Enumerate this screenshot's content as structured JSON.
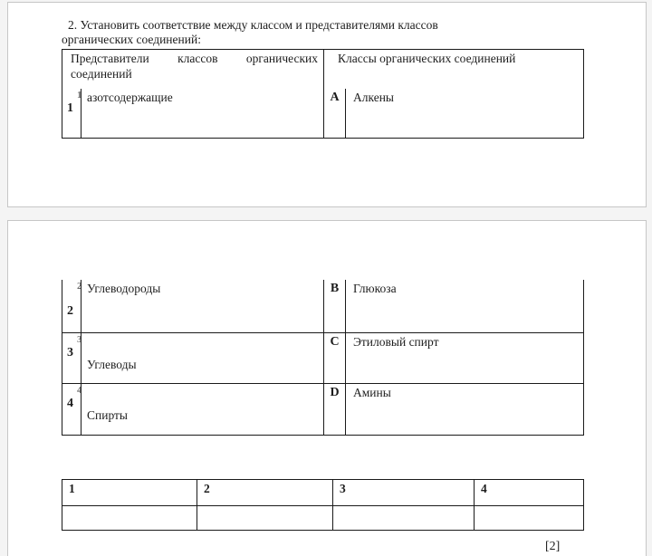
{
  "document": {
    "question": {
      "line1": "2. Установить соответствие между классом и представителями классов",
      "line2": "органических соединений:"
    },
    "match_table": {
      "header_left": "Представители классов органических соединений",
      "header_right": "Классы органических соединений",
      "rows": [
        {
          "num": "1",
          "item": "азотсодержащие",
          "letter": "A",
          "cls": "Алкены"
        },
        {
          "num": "2",
          "item": "Углеводороды",
          "letter": "B",
          "cls": "Глюкоза"
        },
        {
          "num": "3",
          "item": "Углеводы",
          "letter": "C",
          "cls": "Этиловый спирт"
        },
        {
          "num": "4",
          "item": "Спирты",
          "letter": "D",
          "cls": "Амины"
        }
      ]
    },
    "answer_table": {
      "headers": [
        "1",
        "2",
        "3",
        "4"
      ],
      "values": [
        "",
        "",
        "",
        ""
      ]
    },
    "score_label": "[2]"
  },
  "colors": {
    "canvas_bg": "#f4f4f4",
    "page_bg": "#ffffff",
    "page_border": "#c6c6c6",
    "table_line": "#1a1a1a",
    "text": "#1c1c1c"
  }
}
